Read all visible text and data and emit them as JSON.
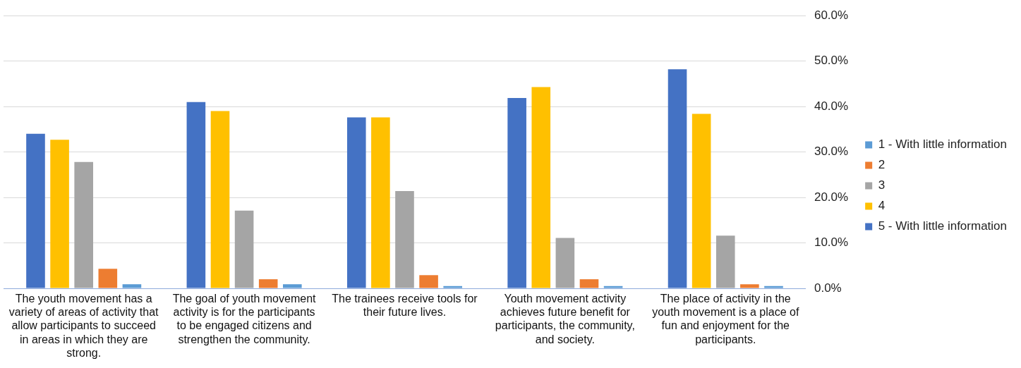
{
  "chart_data": {
    "type": "bar",
    "categories": [
      "The youth movement has a variety of areas of activity that allow participants to succeed in areas in which they are strong.",
      "The goal of youth movement activity is for the participants to be engaged citizens and strengthen the community.",
      "The trainees receive tools for their future lives.",
      "Youth movement activity achieves future benefit for participants, the community, and society.",
      "The place of activity in the youth movement is a place of fun and enjoyment for the participants."
    ],
    "series": [
      {
        "name": "5 - With little information",
        "color": "#4472c4",
        "values": [
          34.0,
          41.0,
          37.6,
          41.9,
          48.2
        ]
      },
      {
        "name": "4",
        "color": "#ffc000",
        "values": [
          32.7,
          39.0,
          37.6,
          44.3,
          38.4
        ]
      },
      {
        "name": "3",
        "color": "#a5a5a5",
        "values": [
          27.8,
          17.1,
          21.4,
          11.1,
          11.6
        ]
      },
      {
        "name": "2",
        "color": "#ed7d31",
        "values": [
          4.3,
          2.0,
          2.9,
          2.0,
          0.9
        ]
      },
      {
        "name": "1 - With little information",
        "color": "#5b9bd5",
        "values": [
          0.9,
          0.9,
          0.5,
          0.5,
          0.5
        ]
      }
    ],
    "ylim": [
      0,
      60
    ],
    "yticks": [
      {
        "value": 0,
        "label": "0.0%"
      },
      {
        "value": 10,
        "label": "10.0%"
      },
      {
        "value": 20,
        "label": "20.0%"
      },
      {
        "value": 30,
        "label": "30.0%"
      },
      {
        "value": 40,
        "label": "40.0%"
      },
      {
        "value": 50,
        "label": "50.0%"
      },
      {
        "value": 60,
        "label": "60.0%"
      }
    ],
    "grid": "y",
    "legend": "right"
  }
}
